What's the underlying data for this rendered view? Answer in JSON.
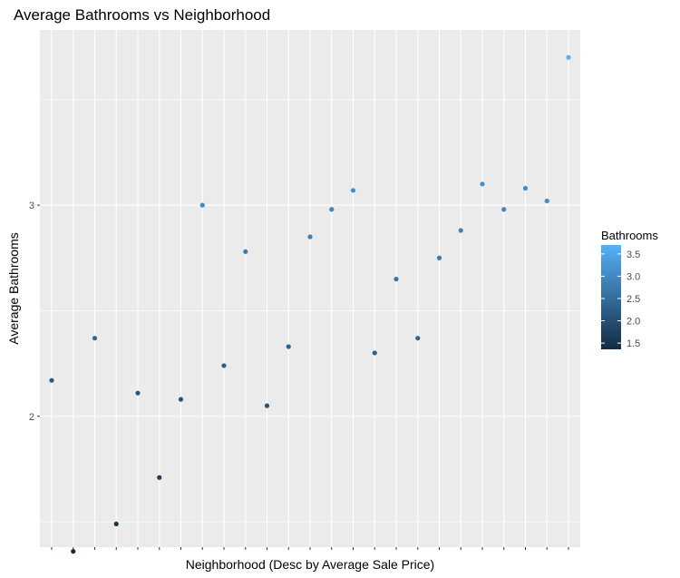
{
  "chart_data": {
    "type": "scatter",
    "title": "Average Bathrooms vs Neighborhood",
    "xlabel": "Neighborhood (Desc by Average Sale Price)",
    "ylabel": "Average Bathrooms",
    "y_ticks": [
      2,
      3
    ],
    "y_tick_labels": [
      "2",
      "3"
    ],
    "ylim": [
      1.38,
      3.83
    ],
    "x_count": 25,
    "x_tick_labels_shown": false,
    "grid": true,
    "values": [
      2.17,
      1.36,
      2.37,
      1.49,
      2.11,
      1.71,
      2.08,
      3.0,
      2.24,
      2.78,
      2.05,
      2.33,
      2.85,
      2.98,
      3.07,
      2.3,
      2.65,
      2.37,
      2.75,
      2.88,
      3.1,
      2.98,
      3.08,
      3.02,
      3.7
    ],
    "color_by": "Bathrooms",
    "legend": {
      "title": "Bathrooms",
      "position": "right",
      "breaks": [
        1.5,
        2.0,
        2.5,
        3.0,
        3.5
      ],
      "labels": [
        "1.5",
        "2.0",
        "2.5",
        "3.0",
        "3.5"
      ],
      "range": [
        1.36,
        3.7
      ],
      "color_low": "#132b43",
      "color_high": "#56b1f7"
    },
    "panel_background": "#ebebeb",
    "grid_color": "#ffffff"
  }
}
